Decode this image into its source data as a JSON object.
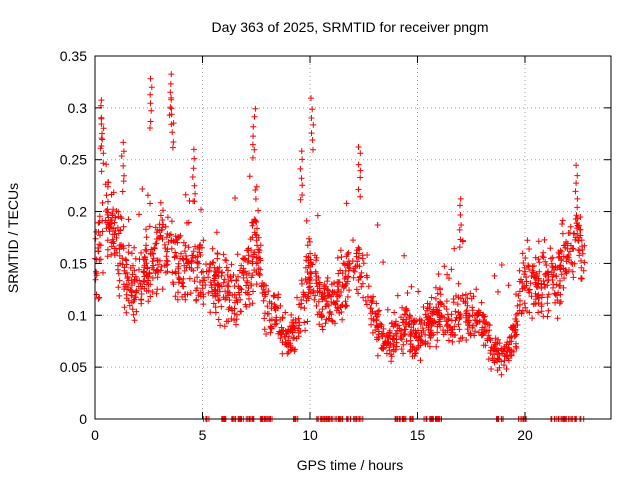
{
  "chart_data": {
    "type": "scatter",
    "title": "Day 363 of 2025, SRMTID for receiver pngm",
    "xlabel": "GPS time / hours",
    "ylabel": "SRMTID / TECUs",
    "xlim": [
      0,
      24
    ],
    "ylim": [
      0,
      0.35
    ],
    "x_ticks": [
      "0",
      "5",
      "10",
      "15",
      "20"
    ],
    "y_ticks": [
      "0",
      "0.05",
      "0.1",
      "0.15",
      "0.2",
      "0.25",
      "0.3",
      "0.35"
    ],
    "grid": true,
    "marker": "+",
    "color": "#ff0000",
    "envelope": [
      {
        "x": 0.0,
        "y": 0.15
      },
      {
        "x": 0.5,
        "y": 0.2
      },
      {
        "x": 1.0,
        "y": 0.18
      },
      {
        "x": 1.5,
        "y": 0.13
      },
      {
        "x": 2.0,
        "y": 0.13
      },
      {
        "x": 2.5,
        "y": 0.15
      },
      {
        "x": 3.0,
        "y": 0.16
      },
      {
        "x": 3.5,
        "y": 0.17
      },
      {
        "x": 4.0,
        "y": 0.14
      },
      {
        "x": 4.5,
        "y": 0.15
      },
      {
        "x": 5.0,
        "y": 0.14
      },
      {
        "x": 5.5,
        "y": 0.13
      },
      {
        "x": 6.0,
        "y": 0.13
      },
      {
        "x": 6.5,
        "y": 0.11
      },
      {
        "x": 7.0,
        "y": 0.14
      },
      {
        "x": 7.5,
        "y": 0.17
      },
      {
        "x": 8.0,
        "y": 0.1
      },
      {
        "x": 8.5,
        "y": 0.1
      },
      {
        "x": 9.0,
        "y": 0.07
      },
      {
        "x": 9.5,
        "y": 0.1
      },
      {
        "x": 10.0,
        "y": 0.15
      },
      {
        "x": 10.5,
        "y": 0.11
      },
      {
        "x": 11.0,
        "y": 0.11
      },
      {
        "x": 11.5,
        "y": 0.13
      },
      {
        "x": 12.0,
        "y": 0.15
      },
      {
        "x": 12.5,
        "y": 0.14
      },
      {
        "x": 13.0,
        "y": 0.1
      },
      {
        "x": 13.5,
        "y": 0.07
      },
      {
        "x": 14.0,
        "y": 0.08
      },
      {
        "x": 14.5,
        "y": 0.09
      },
      {
        "x": 15.0,
        "y": 0.08
      },
      {
        "x": 15.5,
        "y": 0.09
      },
      {
        "x": 16.0,
        "y": 0.1
      },
      {
        "x": 16.5,
        "y": 0.09
      },
      {
        "x": 17.0,
        "y": 0.1
      },
      {
        "x": 17.5,
        "y": 0.1
      },
      {
        "x": 18.0,
        "y": 0.09
      },
      {
        "x": 18.5,
        "y": 0.07
      },
      {
        "x": 19.0,
        "y": 0.06
      },
      {
        "x": 19.5,
        "y": 0.08
      },
      {
        "x": 20.0,
        "y": 0.14
      },
      {
        "x": 20.5,
        "y": 0.13
      },
      {
        "x": 21.0,
        "y": 0.13
      },
      {
        "x": 21.5,
        "y": 0.13
      },
      {
        "x": 22.0,
        "y": 0.16
      },
      {
        "x": 22.5,
        "y": 0.17
      },
      {
        "x": 22.8,
        "y": 0.15
      }
    ],
    "peaks": [
      {
        "x": 0.3,
        "y": 0.31
      },
      {
        "x": 0.35,
        "y": 0.29
      },
      {
        "x": 1.3,
        "y": 0.27
      },
      {
        "x": 2.6,
        "y": 0.33
      },
      {
        "x": 3.5,
        "y": 0.335
      },
      {
        "x": 3.6,
        "y": 0.31
      },
      {
        "x": 4.6,
        "y": 0.26
      },
      {
        "x": 7.4,
        "y": 0.3
      },
      {
        "x": 9.6,
        "y": 0.26
      },
      {
        "x": 10.1,
        "y": 0.31
      },
      {
        "x": 12.3,
        "y": 0.265
      },
      {
        "x": 17.0,
        "y": 0.215
      },
      {
        "x": 22.4,
        "y": 0.245
      }
    ],
    "zero_rows_x_ranges": [
      [
        5,
        5.3
      ],
      [
        5.7,
        6.1
      ],
      [
        6.3,
        7.4
      ],
      [
        7.5,
        8.3
      ],
      [
        9.2,
        9.5
      ],
      [
        10.3,
        12.5
      ],
      [
        13.8,
        14.8
      ],
      [
        15.3,
        16.2
      ],
      [
        18.6,
        19.0
      ],
      [
        19.7,
        20.1
      ],
      [
        21.1,
        22.8
      ]
    ]
  }
}
